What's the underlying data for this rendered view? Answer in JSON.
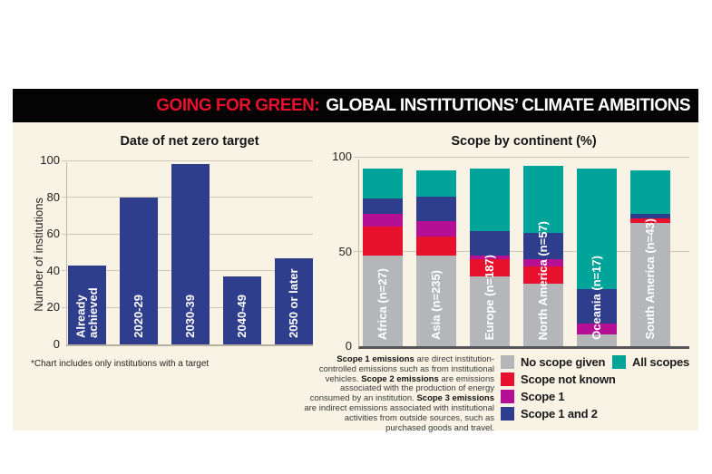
{
  "banner": {
    "highlight": "GOING FOR GREEN:",
    "title": "GLOBAL INSTITUTIONS’ CLIMATE AMBITIONS"
  },
  "colors": {
    "background": "#f8f3e4",
    "banner_background": "#040404",
    "banner_accent": "#e8112d",
    "bar_navy": "#2e3d8c",
    "gridline": "#cfc8b6",
    "axis_dark": "#55565a"
  },
  "chart_data": [
    {
      "id": "net-zero",
      "type": "bar",
      "title": "Date of net zero target",
      "ylabel": "Number of institutions",
      "categories": [
        "Already achieved",
        "2020-29",
        "2030-39",
        "2040-49",
        "2050 or later"
      ],
      "values": [
        43,
        80,
        98,
        37,
        47
      ],
      "ylim": [
        0,
        100
      ],
      "yticks": [
        0,
        20,
        40,
        60,
        80,
        100
      ],
      "bar_color": "#2e3d8c",
      "footnote": "*Chart includes only institutions with a target",
      "grid": true
    },
    {
      "id": "scope-by-continent",
      "type": "stacked-bar",
      "title": "Scope by continent (%)",
      "categories": [
        "Africa (n=27)",
        "Asia (n=235)",
        "Europe (n=187)",
        "North America (n=57)",
        "Oceania (n=17)",
        "South America (n=43)"
      ],
      "series": [
        {
          "name": "No scope given",
          "color": "#b5b6ba",
          "values": [
            48,
            48,
            37,
            33,
            6,
            65
          ]
        },
        {
          "name": "Scope not known",
          "color": "#e8112d",
          "values": [
            15,
            10,
            9,
            9,
            0,
            2.5
          ]
        },
        {
          "name": "Scope 1",
          "color": "#b50f94",
          "values": [
            7,
            8,
            2,
            4,
            6,
            0
          ]
        },
        {
          "name": "Scope 1 and 2",
          "color": "#2e3d8c",
          "values": [
            8,
            13,
            13,
            14,
            18,
            2.5
          ]
        },
        {
          "name": "All scopes",
          "color": "#00a499",
          "values": [
            16,
            14,
            33,
            35,
            64,
            23
          ]
        }
      ],
      "ylim": [
        0,
        100
      ],
      "yticks": [
        0,
        50,
        100
      ],
      "grid": true,
      "legend_position": "bottom-right"
    }
  ],
  "legend": {
    "columns": [
      [
        "No scope given",
        "Scope not known",
        "Scope 1",
        "Scope 1 and 2"
      ],
      [
        "All scopes"
      ]
    ]
  },
  "notes": {
    "scope_definitions": [
      {
        "term": "Scope 1 emissions",
        "rest": " are direct institution-controlled emissions such as from institutional vehicles. "
      },
      {
        "term": "Scope 2 emissions",
        "rest": " are emissions associated with the production of energy consumed by an institution. "
      },
      {
        "term": "Scope 3 emissions",
        "rest": " are indirect emissions associated with institutional activities from outside sources, such as purchased goods and travel."
      }
    ]
  }
}
